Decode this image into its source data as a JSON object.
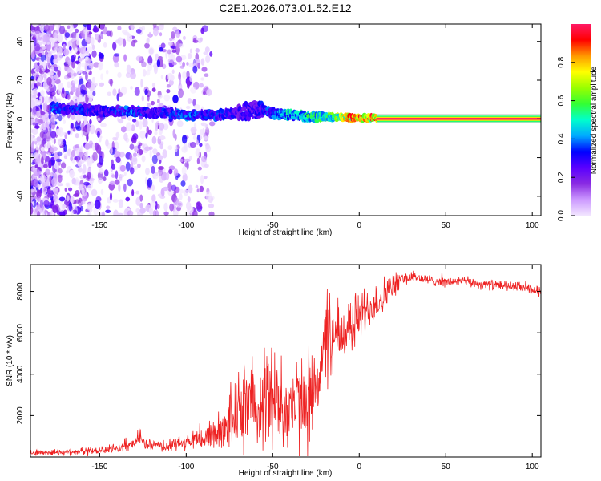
{
  "title": "C2E1.2026.073.01.52.E12",
  "chart_data": [
    {
      "type": "heatmap",
      "xlabel": "Height of straight line (km)",
      "ylabel": "Frequency (Hz)",
      "xlim": [
        -190,
        105
      ],
      "ylim": [
        -50,
        49
      ],
      "xticks": [
        -150,
        -100,
        -50,
        0,
        50,
        100
      ],
      "yticks": [
        -40,
        -20,
        0,
        20,
        40
      ],
      "colorbar": {
        "label": "Normalized spectral amplitude",
        "range": [
          0,
          1
        ],
        "ticks": [
          0.0,
          0.2,
          0.4,
          0.6,
          0.8
        ],
        "tick_labels": [
          "0.0",
          "0.2",
          "0.4",
          "0.6",
          "0.8"
        ],
        "colors": [
          "#f2e6ff",
          "#cc99ff",
          "#8a2be2",
          "#5a00ff",
          "#0000ff",
          "#00aaff",
          "#00ffcc",
          "#33ff33",
          "#99ff00",
          "#ffff00",
          "#ff9900",
          "#ff0000",
          "#ff1a66"
        ]
      },
      "ridge": {
        "x": [
          -178,
          -170,
          -160,
          -150,
          -140,
          -130,
          -120,
          -110,
          -100,
          -90,
          -80,
          -70,
          -65,
          -60,
          -55,
          -50,
          -45,
          -40,
          -35,
          -30,
          -25,
          -20,
          -15,
          -10,
          -5,
          0,
          5,
          10
        ],
        "y": [
          6,
          5,
          5,
          4,
          4,
          4,
          3,
          3,
          2,
          2,
          2,
          3,
          4,
          5,
          4,
          3,
          2,
          2,
          2,
          1,
          1,
          1,
          1,
          1,
          0.5,
          0.5,
          0.5,
          0.5
        ],
        "intensity": [
          0.4,
          0.35,
          0.35,
          0.3,
          0.35,
          0.4,
          0.3,
          0.35,
          0.4,
          0.35,
          0.35,
          0.3,
          0.3,
          0.3,
          0.35,
          0.4,
          0.45,
          0.5,
          0.5,
          0.55,
          0.55,
          0.6,
          0.65,
          0.75,
          0.85,
          0.9,
          0.9,
          0.85
        ]
      },
      "line": {
        "x_start": 10,
        "x_end": 105,
        "y": 0,
        "intensity": 1.0
      }
    },
    {
      "type": "line",
      "xlabel": "Height of straight line (km)",
      "ylabel": "SNR (10 * v/v)",
      "xlim": [
        -190,
        105
      ],
      "ylim": [
        0,
        9300
      ],
      "xticks": [
        -150,
        -100,
        -50,
        0,
        50,
        100
      ],
      "yticks": [
        2000,
        4000,
        6000,
        8000
      ],
      "color": "#ee2222",
      "envelope": {
        "x": [
          -190,
          -150,
          -135,
          -130,
          -127,
          -124,
          -115,
          -100,
          -90,
          -80,
          -75,
          -70,
          -65,
          -60,
          -55,
          -50,
          -45,
          -40,
          -35,
          -30,
          -25,
          -22,
          -20,
          -15,
          -10,
          -5,
          0,
          5,
          10,
          15,
          20,
          25,
          30,
          40,
          50,
          60,
          70,
          80,
          90,
          100,
          105
        ],
        "mean": [
          200,
          300,
          500,
          700,
          1000,
          600,
          500,
          700,
          900,
          1300,
          1800,
          2200,
          2500,
          2700,
          3000,
          2800,
          2600,
          2400,
          2500,
          2700,
          3500,
          4600,
          5200,
          5600,
          5900,
          6300,
          6800,
          7200,
          7500,
          7900,
          8300,
          8600,
          8700,
          8550,
          8450,
          8500,
          8350,
          8300,
          8250,
          8050,
          8000
        ],
        "spread": [
          150,
          200,
          250,
          250,
          400,
          250,
          300,
          400,
          600,
          1100,
          1500,
          1900,
          2300,
          2400,
          2600,
          2500,
          2400,
          2300,
          2400,
          2500,
          2600,
          2300,
          2200,
          1900,
          1700,
          1500,
          1300,
          1100,
          1000,
          900,
          600,
          400,
          300,
          250,
          250,
          250,
          250,
          250,
          250,
          250,
          250
        ]
      }
    }
  ]
}
